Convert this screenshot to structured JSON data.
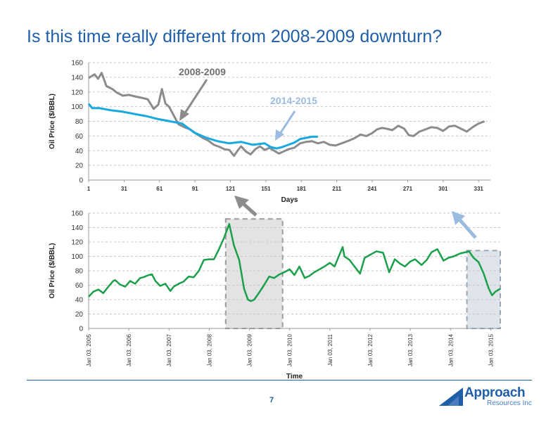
{
  "slide": {
    "title": "Is this time really different from 2008-2009 downturn?",
    "page_number": "7",
    "logo_text": "Approach",
    "logo_subtext": "Resources Inc"
  },
  "colors": {
    "title": "#1f5fa8",
    "series_2008_2009": "#8c8c8c",
    "series_2014_2015": "#19a9e1",
    "annotation_2014_2015": "#9bbbe0",
    "wti_line": "#1aa04a",
    "highlight_fill": "#e3e3e3",
    "highlight_fill_2014": "#dfe4ea"
  },
  "chart_data": [
    {
      "type": "line",
      "title": "",
      "xlabel": "Days",
      "ylabel": "Oil Price ($/BBL)",
      "xlim": [
        1,
        341
      ],
      "ylim": [
        0,
        160
      ],
      "x_ticks": [
        1,
        31,
        61,
        91,
        121,
        151,
        181,
        211,
        241,
        271,
        301,
        331
      ],
      "y_ticks": [
        0,
        20,
        40,
        60,
        80,
        100,
        120,
        140,
        160
      ],
      "grid": "horizontal dashed",
      "legend": "none",
      "annotations": [
        "2008-2009",
        "2014-2015"
      ],
      "series": [
        {
          "name": "2008-2009",
          "x": [
            1,
            6,
            9,
            12,
            16,
            21,
            25,
            30,
            35,
            40,
            46,
            51,
            56,
            60,
            63,
            66,
            69,
            73,
            77,
            82,
            87,
            92,
            97,
            102,
            107,
            112,
            116,
            120,
            124,
            127,
            130,
            134,
            138,
            142,
            146,
            150,
            154,
            158,
            162,
            166,
            170,
            175,
            180,
            185,
            190,
            195,
            200,
            205,
            210,
            215,
            220,
            226,
            231,
            236,
            241,
            245,
            249,
            253,
            258,
            263,
            268,
            272,
            276,
            281,
            286,
            291,
            296,
            301,
            306,
            311,
            316,
            321,
            326,
            331,
            336
          ],
          "values": [
            139,
            144,
            138,
            146,
            128,
            124,
            119,
            115,
            116,
            114,
            112,
            110,
            97,
            103,
            124,
            104,
            100,
            88,
            76,
            72,
            69,
            63,
            58,
            54,
            48,
            45,
            42,
            41,
            33,
            40,
            46,
            39,
            35,
            42,
            46,
            41,
            44,
            40,
            36,
            39,
            42,
            44,
            50,
            52,
            53,
            50,
            52,
            48,
            47,
            50,
            53,
            57,
            62,
            60,
            64,
            69,
            71,
            70,
            68,
            74,
            70,
            61,
            60,
            66,
            69,
            72,
            71,
            67,
            73,
            74,
            70,
            66,
            72,
            77,
            80
          ]
        },
        {
          "name": "2014-2015",
          "x": [
            1,
            4,
            10,
            20,
            30,
            40,
            50,
            60,
            70,
            80,
            90,
            100,
            110,
            120,
            130,
            140,
            150,
            155,
            160,
            165,
            170,
            175,
            180,
            190,
            195
          ],
          "values": [
            104,
            98,
            98,
            95,
            93,
            90,
            87,
            83,
            80,
            77,
            65,
            58,
            53,
            50,
            52,
            48,
            50,
            45,
            43,
            45,
            48,
            51,
            56,
            59,
            59
          ]
        }
      ]
    },
    {
      "type": "line",
      "title": "",
      "xlabel": "Time",
      "ylabel": "Oil Price ($/BBL)",
      "ylim": [
        0,
        160
      ],
      "y_ticks": [
        0,
        20,
        40,
        60,
        80,
        100,
        120,
        140,
        160
      ],
      "x_tick_labels": [
        "Jan 03, 2005",
        "Jan 03, 2006",
        "Jan 03, 2007",
        "Jan 03, 2008",
        "Jan 03, 2009",
        "Jan 03, 2010",
        "Jan 03, 2011",
        "Jan 03, 2012",
        "Jan 03, 2013",
        "Jan 03, 2014",
        "Jan 03, 2015"
      ],
      "x_range": [
        "2005-01-03",
        "2015-03-31"
      ],
      "grid": "horizontal dashed",
      "legend": "none",
      "highlighted_periods": [
        [
          "2008-06-01",
          "2009-10-31"
        ],
        [
          "2014-06-01",
          "2015-03-31"
        ]
      ],
      "series": [
        {
          "x": [
            "2005-01-03",
            "2005-02-15",
            "2005-04-01",
            "2005-05-15",
            "2005-07-01",
            "2005-08-15",
            "2005-09-01",
            "2005-10-15",
            "2005-12-01",
            "2006-01-15",
            "2006-03-01",
            "2006-04-15",
            "2006-05-15",
            "2006-07-01",
            "2006-08-01",
            "2006-09-01",
            "2006-10-15",
            "2006-12-01",
            "2007-01-15",
            "2007-02-15",
            "2007-04-01",
            "2007-05-15",
            "2007-07-01",
            "2007-08-15",
            "2007-10-01",
            "2007-11-15",
            "2008-01-01",
            "2008-02-15",
            "2008-04-01",
            "2008-05-15",
            "2008-07-03",
            "2008-08-15",
            "2008-10-01",
            "2008-11-15",
            "2008-12-20",
            "2009-01-15",
            "2009-02-15",
            "2009-04-01",
            "2009-05-15",
            "2009-07-01",
            "2009-08-15",
            "2009-10-01",
            "2009-11-15",
            "2010-01-03",
            "2010-02-15",
            "2010-04-01",
            "2010-05-20",
            "2010-07-01",
            "2010-08-15",
            "2010-10-01",
            "2010-11-15",
            "2011-01-03",
            "2011-02-15",
            "2011-04-29",
            "2011-05-15",
            "2011-07-01",
            "2011-08-15",
            "2011-10-04",
            "2011-11-15",
            "2012-01-03",
            "2012-03-01",
            "2012-05-01",
            "2012-06-25",
            "2012-08-15",
            "2012-10-01",
            "2012-11-15",
            "2013-01-03",
            "2013-02-15",
            "2013-04-15",
            "2013-06-01",
            "2013-07-15",
            "2013-09-06",
            "2013-11-01",
            "2013-12-15",
            "2014-02-01",
            "2014-04-01",
            "2014-06-20",
            "2014-08-01",
            "2014-09-15",
            "2014-11-01",
            "2014-12-15",
            "2015-01-15",
            "2015-02-15",
            "2015-03-31"
          ],
          "values": [
            44,
            51,
            54,
            49,
            58,
            66,
            67,
            61,
            58,
            66,
            62,
            70,
            71,
            74,
            75,
            66,
            59,
            62,
            52,
            58,
            62,
            65,
            72,
            71,
            80,
            95,
            96,
            96,
            110,
            125,
            145,
            115,
            95,
            55,
            40,
            38,
            40,
            50,
            60,
            72,
            70,
            75,
            78,
            82,
            74,
            86,
            70,
            73,
            78,
            82,
            86,
            91,
            86,
            113,
            100,
            95,
            86,
            76,
            98,
            102,
            107,
            105,
            78,
            96,
            90,
            86,
            93,
            96,
            88,
            95,
            106,
            110,
            94,
            98,
            100,
            104,
            107,
            98,
            92,
            76,
            56,
            46,
            51,
            55
          ]
        }
      ]
    }
  ]
}
